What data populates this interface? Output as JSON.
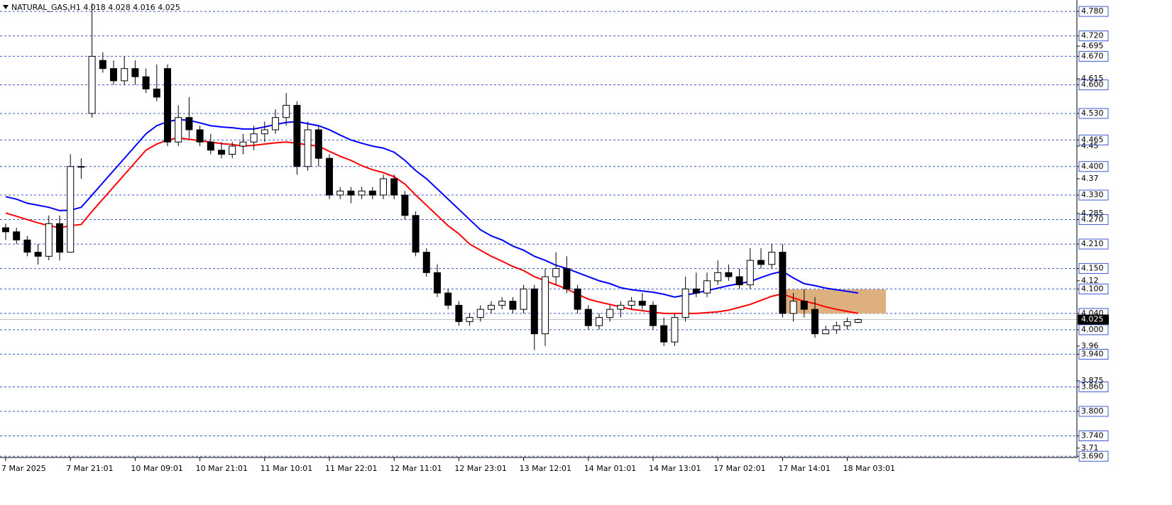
{
  "chart_data": {
    "type": "candlestick",
    "title": "NATURAL_GAS,H1  4.018 4.028 4.016 4.025",
    "up_color": "#ffffff",
    "down_color": "#000000",
    "grid": true,
    "categories": [
      "7 Mar 2025",
      null,
      null,
      null,
      null,
      null,
      "7 Mar 21:01",
      null,
      null,
      null,
      null,
      null,
      "10 Mar 09:01",
      null,
      null,
      null,
      null,
      null,
      "10 Mar 21:01",
      null,
      null,
      null,
      null,
      null,
      "11 Mar 10:01",
      null,
      null,
      null,
      null,
      null,
      "11 Mar 22:01",
      null,
      null,
      null,
      null,
      null,
      "12 Mar 11:01",
      null,
      null,
      null,
      null,
      null,
      "12 Mar 23:01",
      null,
      null,
      null,
      null,
      null,
      "13 Mar 12:01",
      null,
      null,
      null,
      null,
      null,
      "14 Mar 01:01",
      null,
      null,
      null,
      null,
      null,
      "14 Mar 13:01",
      null,
      null,
      null,
      null,
      null,
      "17 Mar 02:01",
      null,
      null,
      null,
      null,
      null,
      "17 Mar 14:01",
      null,
      null,
      null,
      null,
      null,
      "18 Mar 03:01",
      null
    ],
    "ohlc": [
      [
        4.25,
        4.26,
        4.22,
        4.24
      ],
      [
        4.24,
        4.25,
        4.21,
        4.22
      ],
      [
        4.22,
        4.23,
        4.18,
        4.19
      ],
      [
        4.19,
        4.21,
        4.16,
        4.18
      ],
      [
        4.18,
        4.28,
        4.17,
        4.26
      ],
      [
        4.26,
        4.28,
        4.17,
        4.19
      ],
      [
        4.19,
        4.43,
        4.19,
        4.4
      ],
      [
        4.4,
        4.42,
        4.37,
        4.4
      ],
      [
        4.53,
        4.8,
        4.52,
        4.67
      ],
      [
        4.66,
        4.68,
        4.63,
        4.64
      ],
      [
        4.64,
        4.66,
        4.6,
        4.61
      ],
      [
        4.61,
        4.67,
        4.6,
        4.64
      ],
      [
        4.64,
        4.66,
        4.6,
        4.62
      ],
      [
        4.62,
        4.64,
        4.58,
        4.59
      ],
      [
        4.59,
        4.65,
        4.56,
        4.57
      ],
      [
        4.64,
        4.65,
        4.45,
        4.46
      ],
      [
        4.46,
        4.55,
        4.45,
        4.52
      ],
      [
        4.52,
        4.57,
        4.47,
        4.49
      ],
      [
        4.49,
        4.5,
        4.45,
        4.46
      ],
      [
        4.46,
        4.48,
        4.43,
        4.44
      ],
      [
        4.44,
        4.46,
        4.42,
        4.43
      ],
      [
        4.43,
        4.46,
        4.42,
        4.45
      ],
      [
        4.45,
        4.48,
        4.43,
        4.46
      ],
      [
        4.46,
        4.5,
        4.44,
        4.48
      ],
      [
        4.48,
        4.51,
        4.46,
        4.49
      ],
      [
        4.49,
        4.54,
        4.48,
        4.52
      ],
      [
        4.52,
        4.58,
        4.5,
        4.55
      ],
      [
        4.55,
        4.56,
        4.38,
        4.4
      ],
      [
        4.4,
        4.51,
        4.39,
        4.49
      ],
      [
        4.49,
        4.5,
        4.4,
        4.42
      ],
      [
        4.42,
        4.43,
        4.32,
        4.33
      ],
      [
        4.33,
        4.35,
        4.32,
        4.34
      ],
      [
        4.34,
        4.35,
        4.31,
        4.33
      ],
      [
        4.33,
        4.35,
        4.32,
        4.34
      ],
      [
        4.34,
        4.35,
        4.32,
        4.33
      ],
      [
        4.33,
        4.38,
        4.32,
        4.37
      ],
      [
        4.37,
        4.38,
        4.32,
        4.33
      ],
      [
        4.33,
        4.34,
        4.27,
        4.28
      ],
      [
        4.28,
        4.29,
        4.18,
        4.19
      ],
      [
        4.19,
        4.2,
        4.13,
        4.14
      ],
      [
        4.14,
        4.16,
        4.08,
        4.09
      ],
      [
        4.09,
        4.1,
        4.05,
        4.06
      ],
      [
        4.06,
        4.07,
        4.01,
        4.02
      ],
      [
        4.02,
        4.04,
        4.01,
        4.03
      ],
      [
        4.03,
        4.06,
        4.02,
        4.05
      ],
      [
        4.05,
        4.07,
        4.04,
        4.06
      ],
      [
        4.06,
        4.08,
        4.05,
        4.07
      ],
      [
        4.07,
        4.08,
        4.04,
        4.05
      ],
      [
        4.05,
        4.11,
        4.04,
        4.1
      ],
      [
        4.1,
        4.11,
        3.95,
        3.99
      ],
      [
        3.99,
        4.15,
        3.96,
        4.13
      ],
      [
        4.13,
        4.19,
        4.11,
        4.15
      ],
      [
        4.15,
        4.18,
        4.09,
        4.1
      ],
      [
        4.1,
        4.11,
        4.04,
        4.05
      ],
      [
        4.05,
        4.06,
        4.0,
        4.01
      ],
      [
        4.01,
        4.04,
        4.0,
        4.03
      ],
      [
        4.03,
        4.06,
        4.02,
        4.05
      ],
      [
        4.05,
        4.07,
        4.03,
        4.06
      ],
      [
        4.06,
        4.08,
        4.05,
        4.07
      ],
      [
        4.07,
        4.09,
        4.05,
        4.06
      ],
      [
        4.06,
        4.07,
        4.0,
        4.01
      ],
      [
        4.01,
        4.03,
        3.96,
        3.97
      ],
      [
        3.97,
        4.04,
        3.96,
        4.03
      ],
      [
        4.03,
        4.13,
        4.02,
        4.1
      ],
      [
        4.1,
        4.14,
        4.08,
        4.09
      ],
      [
        4.09,
        4.14,
        4.08,
        4.12
      ],
      [
        4.12,
        4.17,
        4.11,
        4.14
      ],
      [
        4.14,
        4.16,
        4.12,
        4.13
      ],
      [
        4.13,
        4.15,
        4.1,
        4.11
      ],
      [
        4.11,
        4.2,
        4.1,
        4.17
      ],
      [
        4.17,
        4.2,
        4.15,
        4.16
      ],
      [
        4.16,
        4.21,
        4.15,
        4.19
      ],
      [
        4.19,
        4.21,
        4.03,
        4.04
      ],
      [
        4.04,
        4.09,
        4.02,
        4.07
      ],
      [
        4.07,
        4.1,
        4.03,
        4.05
      ],
      [
        4.05,
        4.08,
        3.98,
        3.99
      ],
      [
        3.99,
        4.01,
        3.99,
        4.0
      ],
      [
        4.0,
        4.02,
        3.99,
        4.01
      ],
      [
        4.01,
        4.03,
        4.0,
        4.02
      ],
      [
        4.018,
        4.028,
        4.016,
        4.025
      ]
    ],
    "series": [
      {
        "color": "#0000ff",
        "values": [
          4.326,
          4.32,
          4.31,
          4.305,
          4.3,
          4.292,
          4.293,
          4.3,
          4.33,
          4.36,
          4.39,
          4.42,
          4.45,
          4.48,
          4.5,
          4.51,
          4.515,
          4.513,
          4.507,
          4.5,
          4.497,
          4.495,
          4.492,
          4.492,
          4.497,
          4.503,
          4.508,
          4.51,
          4.505,
          4.5,
          4.49,
          4.477,
          4.465,
          4.457,
          4.45,
          4.445,
          4.435,
          4.415,
          4.39,
          4.37,
          4.345,
          4.32,
          4.295,
          4.27,
          4.245,
          4.23,
          4.22,
          4.205,
          4.195,
          4.18,
          4.17,
          4.158,
          4.15,
          4.14,
          4.13,
          4.12,
          4.113,
          4.103,
          4.098,
          4.095,
          4.092,
          4.087,
          4.08,
          4.085,
          4.09,
          4.096,
          4.102,
          4.108,
          4.113,
          4.118,
          4.128,
          4.137,
          4.143,
          4.127,
          4.113,
          4.108,
          4.102,
          4.098,
          4.094,
          4.09
        ]
      },
      {
        "color": "#ff0000",
        "values": [
          4.286,
          4.278,
          4.27,
          4.262,
          4.255,
          4.25,
          4.255,
          4.258,
          4.29,
          4.32,
          4.35,
          4.38,
          4.41,
          4.44,
          4.455,
          4.465,
          4.47,
          4.467,
          4.463,
          4.46,
          4.456,
          4.454,
          4.45,
          4.452,
          4.455,
          4.458,
          4.46,
          4.457,
          4.453,
          4.45,
          4.437,
          4.425,
          4.415,
          4.402,
          4.392,
          4.385,
          4.375,
          4.357,
          4.33,
          4.305,
          4.28,
          4.255,
          4.235,
          4.21,
          4.195,
          4.18,
          4.168,
          4.155,
          4.145,
          4.13,
          4.12,
          4.11,
          4.1,
          4.087,
          4.075,
          4.068,
          4.062,
          4.056,
          4.05,
          4.047,
          4.043,
          4.04,
          4.04,
          4.04,
          4.04,
          4.042,
          4.044,
          4.048,
          4.055,
          4.062,
          4.072,
          4.082,
          4.088,
          4.078,
          4.07,
          4.064,
          4.056,
          4.05,
          4.045,
          4.04
        ]
      }
    ],
    "ylim": [
      3.687,
      4.808
    ],
    "yticks": [
      {
        "value": 4.78,
        "label": "4.780"
      },
      {
        "value": 4.72,
        "label": "4.720"
      },
      {
        "value": 4.67,
        "label": "4.670"
      },
      {
        "value": 4.6,
        "label": "4.600"
      },
      {
        "value": 4.53,
        "label": "4.530"
      },
      {
        "value": 4.465,
        "label": "4.465"
      },
      {
        "value": 4.4,
        "label": "4.400"
      },
      {
        "value": 4.33,
        "label": "4.330"
      },
      {
        "value": 4.27,
        "label": "4.270"
      },
      {
        "value": 4.21,
        "label": "4.210"
      },
      {
        "value": 4.15,
        "label": "4.150"
      },
      {
        "value": 4.1,
        "label": "4.100"
      },
      {
        "value": 4.04,
        "label": "4.040"
      },
      {
        "value": 4.0,
        "label": "4.000"
      },
      {
        "value": 3.94,
        "label": "3.940"
      },
      {
        "value": 3.86,
        "label": "3.860"
      },
      {
        "value": 3.8,
        "label": "3.800"
      },
      {
        "value": 3.74,
        "label": "3.740"
      },
      {
        "value": 3.69,
        "label": "3.690"
      }
    ],
    "yticks_minor": [
      4.695,
      4.615,
      4.45,
      4.37,
      4.285,
      4.12,
      3.96,
      3.875,
      3.71
    ],
    "current_price": 4.025
  }
}
